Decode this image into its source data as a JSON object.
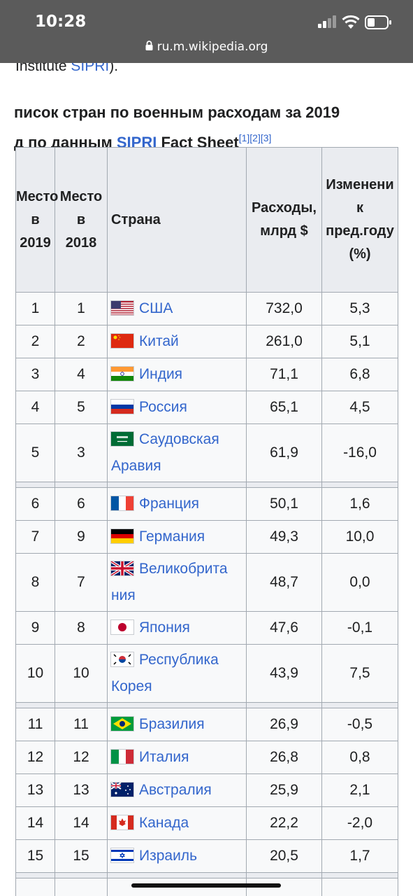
{
  "status": {
    "time": "10:28",
    "url": "ru.m.wikipedia.org"
  },
  "icons": [
    "lock-icon",
    "signal-icon",
    "wifi-icon",
    "battery-icon"
  ],
  "intro": {
    "text": "Institute ",
    "link": "SIPRI",
    "after": ")."
  },
  "caption": {
    "line1": "писок стран по военным расходам за 2019",
    "line2_pre": "д по данным ",
    "link": "SIPRI",
    "line2_post": " Fact Sheet",
    "refs": [
      "[1]",
      "[2]",
      "[3]"
    ]
  },
  "headers": {
    "rank2019": [
      "Место",
      "в",
      "2019"
    ],
    "rank2018": [
      "Место",
      "в",
      "2018"
    ],
    "country": "Страна",
    "spend": [
      "Расходы,",
      "млрд $"
    ],
    "change": [
      "Изменени",
      "к",
      "пред.году",
      "(%)"
    ]
  },
  "rows": [
    {
      "r19": "1",
      "r18": "1",
      "country": "США",
      "spend": "732,0",
      "change": "5,3"
    },
    {
      "r19": "2",
      "r18": "2",
      "country": "Китай",
      "spend": "261,0",
      "change": "5,1"
    },
    {
      "r19": "3",
      "r18": "4",
      "country": "Индия",
      "spend": "71,1",
      "change": "6,8"
    },
    {
      "r19": "4",
      "r18": "5",
      "country": "Россия",
      "spend": "65,1",
      "change": "4,5"
    },
    {
      "r19": "5",
      "r18": "3",
      "country_l1": "Саудовская",
      "country_l2": "Аравия",
      "spend": "61,9",
      "change": "-16,0"
    },
    {
      "r19": "6",
      "r18": "6",
      "country": "Франция",
      "spend": "50,1",
      "change": "1,6"
    },
    {
      "r19": "7",
      "r18": "9",
      "country": "Германия",
      "spend": "49,3",
      "change": "10,0"
    },
    {
      "r19": "8",
      "r18": "7",
      "country_l1": "Великобрита",
      "country_l2": "ния",
      "spend": "48,7",
      "change": "0,0"
    },
    {
      "r19": "9",
      "r18": "8",
      "country": "Япония",
      "spend": "47,6",
      "change": "-0,1"
    },
    {
      "r19": "10",
      "r18": "10",
      "country_l1": "Республика",
      "country_l2": "Корея",
      "spend": "43,9",
      "change": "7,5"
    },
    {
      "r19": "11",
      "r18": "11",
      "country": "Бразилия",
      "spend": "26,9",
      "change": "-0,5"
    },
    {
      "r19": "12",
      "r18": "12",
      "country": "Италия",
      "spend": "26,8",
      "change": "0,8"
    },
    {
      "r19": "13",
      "r18": "13",
      "country": "Австралия",
      "spend": "25,9",
      "change": "2,1"
    },
    {
      "r19": "14",
      "r18": "14",
      "country": "Канада",
      "spend": "22,2",
      "change": "-2,0"
    },
    {
      "r19": "15",
      "r18": "15",
      "country": "Израиль",
      "spend": "20,5",
      "change": "1,7"
    }
  ],
  "colors": {
    "link": "#3366cc",
    "header_bg": "#eaecf0",
    "border": "#a2a9b1",
    "status_bg": "#5b5b5b"
  }
}
